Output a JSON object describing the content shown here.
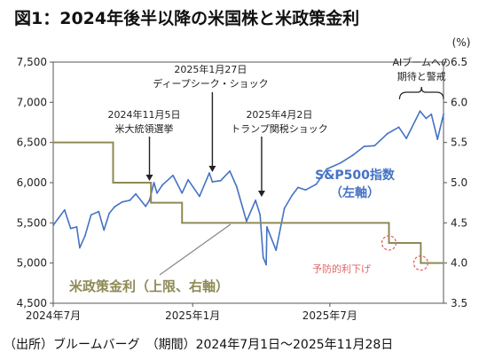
{
  "chart_data": {
    "type": "line",
    "title": "図1：2024年後半以降の米国株と米政策金利",
    "source_note": "（出所）ブルームバーグ　（期間）2024年7月1日～2025年11月28日",
    "x_ticks": [
      "2024年7月",
      "2025年1月",
      "2025年7月"
    ],
    "x_range": [
      "2024-07-01",
      "2025-11-28"
    ],
    "y_left": {
      "ticks": [
        "4,500",
        "5,000",
        "5,500",
        "6,000",
        "6,500",
        "7,000",
        "7,500"
      ],
      "range": [
        4500,
        7500
      ]
    },
    "y_right": {
      "unit": "(%)",
      "ticks": [
        "3.5",
        "4.0",
        "4.5",
        "5.0",
        "5.5",
        "6.0",
        "6.5"
      ],
      "range": [
        3.5,
        6.5
      ]
    },
    "grid": false,
    "series": [
      {
        "name": "S&P500指数（左軸）",
        "label_lines": [
          "S&P500指数",
          "（左軸）"
        ],
        "color": "#4472C4",
        "axis": "left",
        "points": [
          [
            "2024-07-01",
            5470
          ],
          [
            "2024-07-08",
            5560
          ],
          [
            "2024-07-16",
            5660
          ],
          [
            "2024-07-24",
            5430
          ],
          [
            "2024-08-01",
            5450
          ],
          [
            "2024-08-05",
            5190
          ],
          [
            "2024-08-12",
            5340
          ],
          [
            "2024-08-20",
            5600
          ],
          [
            "2024-08-30",
            5640
          ],
          [
            "2024-09-06",
            5410
          ],
          [
            "2024-09-13",
            5620
          ],
          [
            "2024-09-20",
            5700
          ],
          [
            "2024-09-30",
            5760
          ],
          [
            "2024-10-10",
            5780
          ],
          [
            "2024-10-18",
            5860
          ],
          [
            "2024-10-31",
            5705
          ],
          [
            "2024-11-05",
            5780
          ],
          [
            "2024-11-11",
            6000
          ],
          [
            "2024-11-15",
            5870
          ],
          [
            "2024-11-22",
            5970
          ],
          [
            "2024-12-06",
            6090
          ],
          [
            "2024-12-18",
            5870
          ],
          [
            "2024-12-26",
            6035
          ],
          [
            "2025-01-10",
            5830
          ],
          [
            "2025-01-23",
            6120
          ],
          [
            "2025-01-27",
            6010
          ],
          [
            "2025-02-07",
            6025
          ],
          [
            "2025-02-19",
            6145
          ],
          [
            "2025-02-28",
            5950
          ],
          [
            "2025-03-13",
            5520
          ],
          [
            "2025-03-25",
            5780
          ],
          [
            "2025-03-31",
            5600
          ],
          [
            "2025-04-04",
            5070
          ],
          [
            "2025-04-08",
            4980
          ],
          [
            "2025-04-09",
            5450
          ],
          [
            "2025-04-21",
            5160
          ],
          [
            "2025-05-02",
            5680
          ],
          [
            "2025-05-12",
            5840
          ],
          [
            "2025-05-20",
            5940
          ],
          [
            "2025-05-30",
            5910
          ],
          [
            "2025-06-13",
            5980
          ],
          [
            "2025-06-27",
            6170
          ],
          [
            "2025-07-15",
            6245
          ],
          [
            "2025-07-31",
            6340
          ],
          [
            "2025-08-15",
            6450
          ],
          [
            "2025-08-29",
            6460
          ],
          [
            "2025-09-15",
            6610
          ],
          [
            "2025-09-30",
            6690
          ],
          [
            "2025-10-10",
            6550
          ],
          [
            "2025-10-28",
            6890
          ],
          [
            "2025-11-05",
            6800
          ],
          [
            "2025-11-12",
            6850
          ],
          [
            "2025-11-20",
            6540
          ],
          [
            "2025-11-28",
            6850
          ]
        ]
      },
      {
        "name": "米政策金利（上限、右軸）",
        "color": "#8E8A55",
        "axis": "right",
        "style": "step",
        "points": [
          [
            "2024-07-01",
            5.5
          ],
          [
            "2024-09-18",
            5.0
          ],
          [
            "2024-11-07",
            4.75
          ],
          [
            "2024-12-18",
            4.5
          ],
          [
            "2025-09-17",
            4.25
          ],
          [
            "2025-10-29",
            4.0
          ],
          [
            "2025-11-28",
            4.0
          ]
        ]
      }
    ],
    "annotations": [
      {
        "text_lines": [
          "2024年11月5日",
          "米大統領選挙"
        ],
        "date": "2024-11-05"
      },
      {
        "text_lines": [
          "2025年1月27日",
          "ディープシーク・ショック"
        ],
        "date": "2025-01-27"
      },
      {
        "text_lines": [
          "2025年4月2日",
          "トランプ関税ショック"
        ],
        "date": "2025-04-02"
      },
      {
        "text_lines": [
          "AIブームへの",
          "期待と警戒"
        ],
        "date_range": [
          "2025-10-01",
          "2025-11-28"
        ]
      },
      {
        "text_lines": [
          "予防的利下げ"
        ],
        "color": "#E06666",
        "dates": [
          "2025-09-17",
          "2025-10-29"
        ]
      }
    ]
  }
}
